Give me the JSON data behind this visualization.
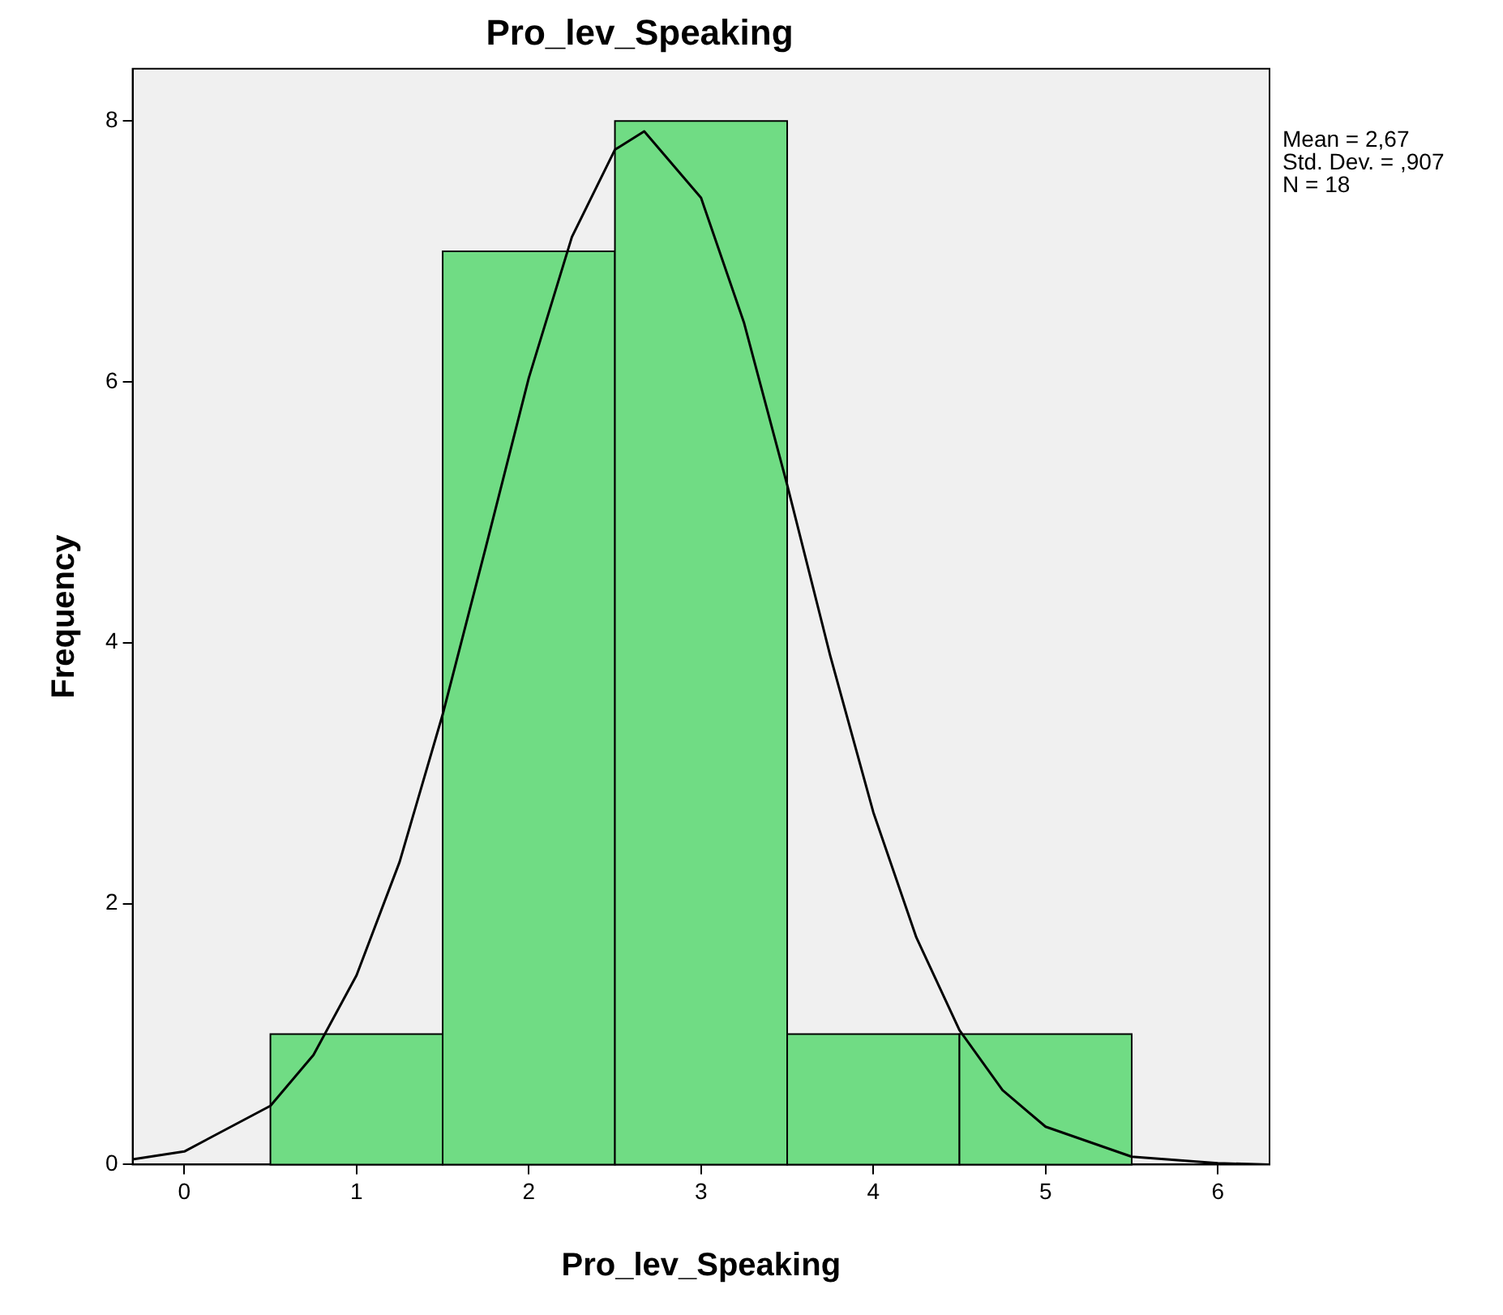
{
  "chart_data": {
    "type": "histogram",
    "title": "Pro_lev_Speaking",
    "xlabel": "Pro_lev_Speaking",
    "ylabel": "Frequency",
    "bins": [
      0.5,
      1.5,
      2.5,
      3.5,
      4.5,
      5.5
    ],
    "values": [
      1,
      7,
      8,
      1,
      1
    ],
    "color": "#70dc84",
    "series": [
      {
        "type": "line",
        "color": "#000000",
        "x": [
          -0.3,
          0,
          0.5,
          0.75,
          1,
          1.25,
          1.5,
          1.75,
          2,
          2.25,
          2.5,
          2.67,
          3,
          3.25,
          3.5,
          3.75,
          4,
          4.25,
          4.5,
          4.75,
          5,
          5.5,
          6,
          6.3
        ],
        "values": [
          0.04,
          0.1,
          0.45,
          0.84,
          1.45,
          2.32,
          3.45,
          4.73,
          6.03,
          7.11,
          7.78,
          7.92,
          7.41,
          6.45,
          5.21,
          3.9,
          2.7,
          1.74,
          1.03,
          0.57,
          0.29,
          0.06,
          0.01,
          0
        ]
      }
    ],
    "xlim": [
      -0.3,
      6.3
    ],
    "xticks": [
      0,
      1,
      2,
      3,
      4,
      5,
      6
    ],
    "ylim": [
      0,
      8.4
    ],
    "yticks": [
      0,
      2,
      4,
      6,
      8
    ],
    "grid": false,
    "legend": false,
    "marker": "none",
    "annotations": [
      "Mean = 2,67",
      "Std. Dev. = ,907",
      "N = 18"
    ]
  }
}
